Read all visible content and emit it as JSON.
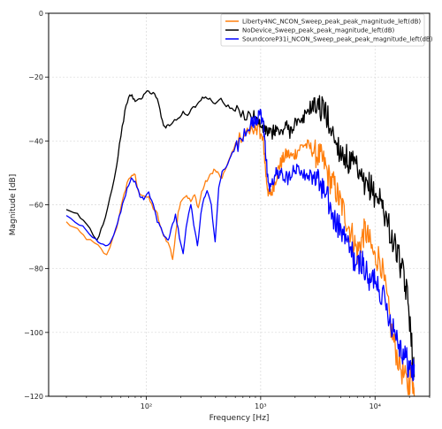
{
  "chart_data": {
    "type": "line",
    "xlabel": "Frequency [Hz]",
    "ylabel": "Magnitude [dB]",
    "xscale": "log",
    "xlim": [
      14,
      30000
    ],
    "ylim": [
      -120,
      0
    ],
    "grid": true,
    "legend_position": "top-right",
    "xticks": [
      {
        "value": 100,
        "label": "10²"
      },
      {
        "value": 1000,
        "label": "10³"
      },
      {
        "value": 10000,
        "label": "10⁴"
      }
    ],
    "yticks": [
      0,
      -20,
      -40,
      -60,
      -80,
      -100,
      -120
    ],
    "series": [
      {
        "name": "Liberty4NC_NCON_Sweep_peak_peak_magnitude_left(dB)",
        "color": "#ff7f0e",
        "points": [
          [
            20,
            -65.5
          ],
          [
            25,
            -68
          ],
          [
            30,
            -70.5
          ],
          [
            38,
            -73
          ],
          [
            45,
            -76
          ],
          [
            55,
            -67
          ],
          [
            62,
            -59
          ],
          [
            68,
            -53
          ],
          [
            75,
            -50.5
          ],
          [
            80,
            -51
          ],
          [
            85,
            -56
          ],
          [
            95,
            -57
          ],
          [
            105,
            -58
          ],
          [
            115,
            -61
          ],
          [
            125,
            -63
          ],
          [
            135,
            -68
          ],
          [
            145,
            -70
          ],
          [
            160,
            -73
          ],
          [
            170,
            -77
          ],
          [
            180,
            -70
          ],
          [
            190,
            -62
          ],
          [
            205,
            -58
          ],
          [
            225,
            -57
          ],
          [
            245,
            -59
          ],
          [
            265,
            -57
          ],
          [
            285,
            -61
          ],
          [
            305,
            -56
          ],
          [
            330,
            -53
          ],
          [
            360,
            -51
          ],
          [
            390,
            -49
          ],
          [
            420,
            -50
          ],
          [
            460,
            -52
          ],
          [
            500,
            -48
          ],
          [
            560,
            -44
          ],
          [
            630,
            -40
          ],
          [
            700,
            -38
          ],
          [
            800,
            -37
          ],
          [
            900,
            -36.5
          ],
          [
            960,
            -35
          ],
          [
            1000,
            -38
          ],
          [
            1060,
            -41
          ],
          [
            1120,
            -52
          ],
          [
            1180,
            -57
          ],
          [
            1250,
            -56
          ],
          [
            1350,
            -52
          ],
          [
            1450,
            -48
          ],
          [
            1550,
            -46
          ],
          [
            1700,
            -44
          ],
          [
            1900,
            -45
          ],
          [
            2100,
            -43
          ],
          [
            2400,
            -41
          ],
          [
            2700,
            -42
          ],
          [
            3000,
            -44
          ],
          [
            3300,
            -45
          ],
          [
            3600,
            -47
          ],
          [
            4000,
            -52
          ],
          [
            4400,
            -54
          ],
          [
            4800,
            -58
          ],
          [
            5200,
            -61
          ],
          [
            5800,
            -66
          ],
          [
            6400,
            -70
          ],
          [
            7000,
            -75
          ],
          [
            7600,
            -71
          ],
          [
            8200,
            -68
          ],
          [
            9000,
            -72
          ],
          [
            10000,
            -77
          ],
          [
            11000,
            -76
          ],
          [
            12500,
            -88
          ],
          [
            14000,
            -100
          ],
          [
            15500,
            -107
          ],
          [
            17500,
            -113
          ],
          [
            19500,
            -117
          ],
          [
            21000,
            -112
          ],
          [
            22000,
            -120
          ]
        ]
      },
      {
        "name": "NoDevice_Sweep_peak_peak_magnitude_left(dB)",
        "color": "#000000",
        "points": [
          [
            20,
            -62
          ],
          [
            25,
            -63
          ],
          [
            30,
            -66
          ],
          [
            37,
            -71
          ],
          [
            42,
            -66
          ],
          [
            48,
            -58
          ],
          [
            55,
            -48
          ],
          [
            60,
            -38
          ],
          [
            65,
            -31
          ],
          [
            70,
            -26
          ],
          [
            75,
            -26
          ],
          [
            80,
            -27.5
          ],
          [
            88,
            -27
          ],
          [
            95,
            -25.5
          ],
          [
            105,
            -24.5
          ],
          [
            115,
            -25
          ],
          [
            125,
            -27
          ],
          [
            135,
            -32
          ],
          [
            145,
            -36
          ],
          [
            155,
            -35
          ],
          [
            170,
            -34
          ],
          [
            190,
            -33
          ],
          [
            210,
            -31
          ],
          [
            230,
            -32
          ],
          [
            255,
            -29
          ],
          [
            275,
            -29
          ],
          [
            300,
            -27
          ],
          [
            330,
            -26.5
          ],
          [
            360,
            -27
          ],
          [
            400,
            -28
          ],
          [
            450,
            -27
          ],
          [
            500,
            -29
          ],
          [
            560,
            -30
          ],
          [
            620,
            -31
          ],
          [
            700,
            -32
          ],
          [
            780,
            -31
          ],
          [
            860,
            -32
          ],
          [
            950,
            -34
          ],
          [
            1050,
            -36
          ],
          [
            1150,
            -37
          ],
          [
            1250,
            -38
          ],
          [
            1350,
            -36
          ],
          [
            1500,
            -38
          ],
          [
            1650,
            -35
          ],
          [
            1800,
            -37
          ],
          [
            2000,
            -34
          ],
          [
            2250,
            -35
          ],
          [
            2500,
            -31
          ],
          [
            2800,
            -29
          ],
          [
            3100,
            -28
          ],
          [
            3400,
            -30
          ],
          [
            3700,
            -31
          ],
          [
            4000,
            -35
          ],
          [
            4500,
            -40
          ],
          [
            5000,
            -43
          ],
          [
            5500,
            -45
          ],
          [
            6000,
            -47
          ],
          [
            6700,
            -48
          ],
          [
            7400,
            -52
          ],
          [
            8200,
            -55
          ],
          [
            9000,
            -54
          ],
          [
            10000,
            -57
          ],
          [
            11000,
            -58
          ],
          [
            12000,
            -62
          ],
          [
            13000,
            -66
          ],
          [
            14500,
            -72
          ],
          [
            16000,
            -76
          ],
          [
            17500,
            -82
          ],
          [
            19000,
            -88
          ],
          [
            20500,
            -98
          ],
          [
            22000,
            -114
          ]
        ]
      },
      {
        "name": "SoundcoreP31i_NCON_Sweep_peak_peak_magnitude_left(dB)",
        "color": "#0000ff",
        "points": [
          [
            20,
            -63
          ],
          [
            26,
            -66
          ],
          [
            32,
            -69
          ],
          [
            38,
            -72
          ],
          [
            44,
            -73
          ],
          [
            50,
            -71
          ],
          [
            56,
            -66
          ],
          [
            62,
            -60
          ],
          [
            68,
            -55
          ],
          [
            74,
            -52
          ],
          [
            80,
            -53
          ],
          [
            88,
            -57
          ],
          [
            95,
            -58
          ],
          [
            105,
            -56
          ],
          [
            115,
            -60
          ],
          [
            125,
            -65
          ],
          [
            135,
            -67
          ],
          [
            145,
            -70
          ],
          [
            155,
            -71
          ],
          [
            165,
            -68
          ],
          [
            180,
            -63
          ],
          [
            195,
            -70
          ],
          [
            210,
            -75
          ],
          [
            230,
            -64
          ],
          [
            245,
            -60
          ],
          [
            260,
            -66
          ],
          [
            280,
            -73
          ],
          [
            300,
            -63
          ],
          [
            320,
            -58
          ],
          [
            340,
            -56
          ],
          [
            370,
            -60
          ],
          [
            400,
            -72
          ],
          [
            430,
            -55
          ],
          [
            460,
            -50
          ],
          [
            500,
            -48
          ],
          [
            550,
            -45
          ],
          [
            600,
            -42
          ],
          [
            650,
            -41
          ],
          [
            700,
            -38
          ],
          [
            760,
            -36
          ],
          [
            820,
            -35
          ],
          [
            880,
            -34
          ],
          [
            940,
            -33
          ],
          [
            1000,
            -32
          ],
          [
            1060,
            -35
          ],
          [
            1120,
            -46
          ],
          [
            1180,
            -55
          ],
          [
            1250,
            -54
          ],
          [
            1350,
            -50
          ],
          [
            1450,
            -51
          ],
          [
            1550,
            -50
          ],
          [
            1700,
            -52
          ],
          [
            1900,
            -49
          ],
          [
            2100,
            -48
          ],
          [
            2400,
            -50
          ],
          [
            2700,
            -51
          ],
          [
            3000,
            -52
          ],
          [
            3300,
            -53
          ],
          [
            3600,
            -56
          ],
          [
            4000,
            -60
          ],
          [
            4400,
            -65
          ],
          [
            4800,
            -67
          ],
          [
            5200,
            -69
          ],
          [
            5800,
            -73
          ],
          [
            6400,
            -76
          ],
          [
            7000,
            -80
          ],
          [
            7600,
            -77
          ],
          [
            8200,
            -81
          ],
          [
            9000,
            -85
          ],
          [
            10000,
            -82
          ],
          [
            11000,
            -86
          ],
          [
            12500,
            -92
          ],
          [
            14000,
            -97
          ],
          [
            15500,
            -101
          ],
          [
            17000,
            -105
          ],
          [
            18500,
            -108
          ],
          [
            20000,
            -111
          ],
          [
            21500,
            -113
          ],
          [
            22000,
            -110
          ]
        ]
      }
    ]
  }
}
